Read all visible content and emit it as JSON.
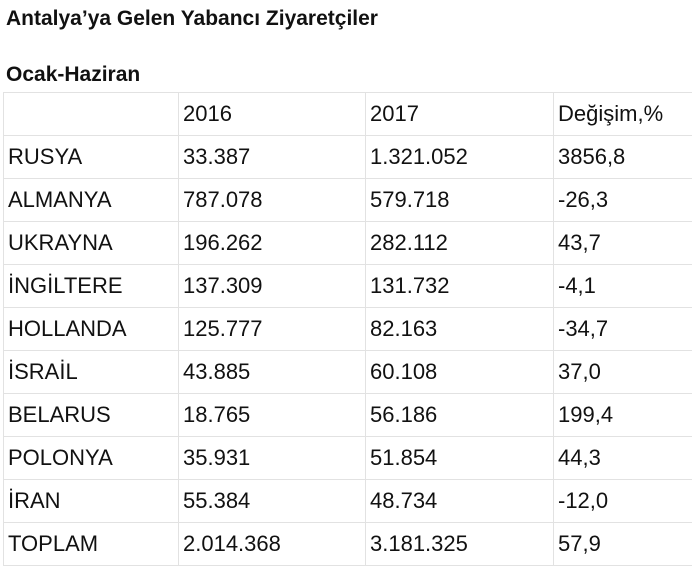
{
  "title": "Antalya’ya Gelen Yabancı Ziyaretçiler",
  "subtitle": "Ocak-Haziran",
  "table": {
    "header": [
      "2016",
      "2017",
      "Değişim,%"
    ],
    "rows": [
      [
        "RUSYA",
        "33.387",
        "1.321.052",
        "3856,8"
      ],
      [
        "ALMANYA",
        "787.078",
        "579.718",
        "-26,3"
      ],
      [
        "UKRAYNA",
        "196.262",
        "282.112",
        "43,7"
      ],
      [
        "İNGİLTERE",
        "137.309",
        "131.732",
        "-4,1"
      ],
      [
        "HOLLANDA",
        "125.777",
        "82.163",
        "-34,7"
      ],
      [
        "İSRAİL",
        "43.885",
        "60.108",
        "37,0"
      ],
      [
        "BELARUS",
        "18.765",
        "56.186",
        "199,4"
      ],
      [
        "POLONYA",
        "35.931",
        "51.854",
        "44,3"
      ],
      [
        "İRAN",
        "55.384",
        "48.734",
        "-12,0"
      ],
      [
        "TOPLAM",
        "2.014.368",
        "3.181.325",
        "57,9"
      ]
    ]
  }
}
